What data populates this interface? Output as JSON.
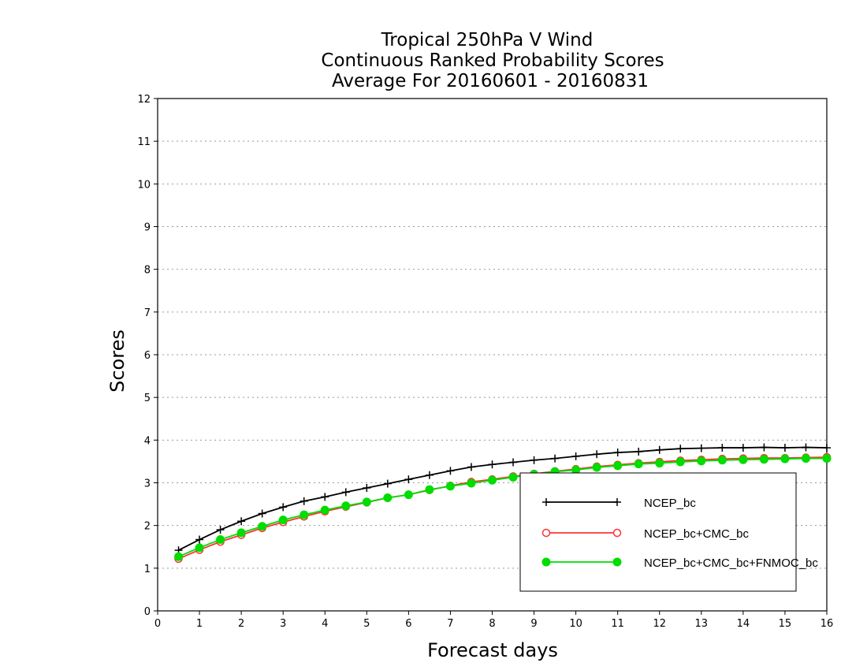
{
  "chart_data": {
    "type": "line",
    "title": [
      "Tropical 250hPa V Wind",
      "Continuous Ranked Probability Scores",
      "Average For 20160601 - 20160831"
    ],
    "xlabel": "Forecast days",
    "ylabel": "Scores",
    "xlim": [
      0,
      16
    ],
    "ylim": [
      0,
      12
    ],
    "xticks": [
      "0",
      "1",
      "2",
      "3",
      "4",
      "5",
      "6",
      "7",
      "8",
      "9",
      "10",
      "11",
      "12",
      "13",
      "14",
      "15",
      "16"
    ],
    "yticks": [
      "0",
      "1",
      "2",
      "3",
      "4",
      "5",
      "6",
      "7",
      "8",
      "9",
      "10",
      "11",
      "12"
    ],
    "grid": true,
    "legend_position": "bottom-right",
    "x": [
      0.5,
      1,
      1.5,
      2,
      2.5,
      3,
      3.5,
      4,
      4.5,
      5,
      5.5,
      6,
      6.5,
      7,
      7.5,
      8,
      8.5,
      9,
      9.5,
      10,
      10.5,
      11,
      11.5,
      12,
      12.5,
      13,
      13.5,
      14,
      14.5,
      15,
      15.5,
      16
    ],
    "series": [
      {
        "name": "NCEP_bc",
        "color": "#000000",
        "marker": "plus",
        "values": [
          1.42,
          1.67,
          1.9,
          2.1,
          2.28,
          2.43,
          2.57,
          2.67,
          2.78,
          2.88,
          2.98,
          3.08,
          3.18,
          3.28,
          3.37,
          3.43,
          3.48,
          3.53,
          3.57,
          3.62,
          3.67,
          3.71,
          3.73,
          3.77,
          3.8,
          3.81,
          3.82,
          3.82,
          3.83,
          3.82,
          3.83,
          3.82
        ]
      },
      {
        "name": "NCEP_bc+CMC_bc",
        "color": "#ff3333",
        "marker": "open-circle",
        "values": [
          1.22,
          1.43,
          1.62,
          1.78,
          1.94,
          2.08,
          2.21,
          2.33,
          2.44,
          2.54,
          2.65,
          2.72,
          2.83,
          2.93,
          3.02,
          3.08,
          3.15,
          3.21,
          3.27,
          3.32,
          3.38,
          3.42,
          3.46,
          3.49,
          3.52,
          3.54,
          3.56,
          3.57,
          3.58,
          3.58,
          3.59,
          3.6
        ]
      },
      {
        "name": "NCEP_bc+CMC_bc+FNMOC_bc",
        "color": "#00dd00",
        "marker": "filled-circle",
        "values": [
          1.27,
          1.48,
          1.67,
          1.83,
          1.98,
          2.13,
          2.25,
          2.36,
          2.46,
          2.55,
          2.65,
          2.72,
          2.84,
          2.92,
          2.99,
          3.06,
          3.13,
          3.2,
          3.26,
          3.3,
          3.36,
          3.4,
          3.44,
          3.46,
          3.49,
          3.51,
          3.53,
          3.54,
          3.55,
          3.56,
          3.57,
          3.57
        ]
      }
    ]
  }
}
